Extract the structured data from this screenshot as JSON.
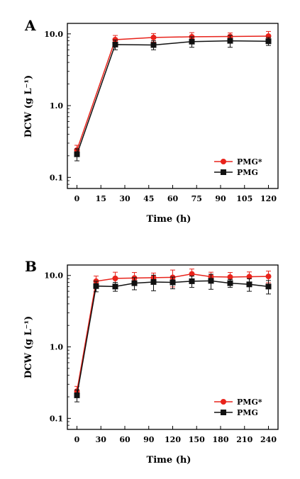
{
  "chart_data": [
    {
      "type": "line",
      "panel_label": "A",
      "xlabel": "Time (h)",
      "ylabel": "DCW (g L⁻¹)",
      "ylog": true,
      "ylim": [
        0.07,
        14
      ],
      "xlim": [
        -6,
        126
      ],
      "xticks": [
        0,
        15,
        30,
        45,
        60,
        75,
        90,
        105,
        120
      ],
      "yticks": [
        0.1,
        1.0,
        10.0
      ],
      "ytick_labels": [
        "0.1",
        "1.0",
        "10.0"
      ],
      "legend_position": "lower-right",
      "series": [
        {
          "name": "PMG*",
          "color": "#e8231b",
          "marker": "circle",
          "x": [
            0,
            24,
            48,
            72,
            96,
            120
          ],
          "y": [
            0.24,
            8.3,
            8.9,
            9.1,
            9.2,
            9.3
          ],
          "err": [
            0.04,
            1.2,
            1.2,
            1.3,
            1.1,
            1.5
          ]
        },
        {
          "name": "PMG",
          "color": "#111111",
          "marker": "square",
          "x": [
            0,
            24,
            48,
            72,
            96,
            120
          ],
          "y": [
            0.21,
            7.1,
            7.0,
            7.8,
            8.0,
            7.9
          ],
          "err": [
            0.04,
            1.1,
            1.0,
            1.3,
            1.5,
            1.0
          ]
        }
      ]
    },
    {
      "type": "line",
      "panel_label": "B",
      "xlabel": "Time (h)",
      "ylabel": "DCW (g L⁻¹)",
      "ylog": true,
      "ylim": [
        0.07,
        14
      ],
      "xlim": [
        -12,
        252
      ],
      "xticks": [
        0,
        30,
        60,
        90,
        120,
        150,
        180,
        210,
        240
      ],
      "yticks": [
        0.1,
        1.0,
        10.0
      ],
      "ytick_labels": [
        "0.1",
        "1.0",
        "10.0"
      ],
      "legend_position": "lower-right",
      "series": [
        {
          "name": "PMG*",
          "color": "#e8231b",
          "marker": "circle",
          "x": [
            0,
            24,
            48,
            72,
            96,
            120,
            144,
            168,
            192,
            216,
            240
          ],
          "y": [
            0.24,
            8.3,
            9.1,
            9.2,
            9.3,
            9.4,
            10.5,
            9.6,
            9.5,
            9.6,
            9.7
          ],
          "err": [
            0.04,
            1.5,
            2.0,
            1.8,
            1.5,
            2.5,
            1.8,
            1.5,
            1.5,
            1.6,
            1.8
          ]
        },
        {
          "name": "PMG",
          "color": "#111111",
          "marker": "square",
          "x": [
            0,
            24,
            48,
            72,
            96,
            120,
            144,
            168,
            192,
            216,
            240
          ],
          "y": [
            0.21,
            7.1,
            7.0,
            7.8,
            8.1,
            8.0,
            8.3,
            8.4,
            7.8,
            7.5,
            7.0
          ],
          "err": [
            0.04,
            1.2,
            1.0,
            1.5,
            2.0,
            1.5,
            1.5,
            2.0,
            1.0,
            1.5,
            1.5
          ]
        }
      ]
    }
  ]
}
